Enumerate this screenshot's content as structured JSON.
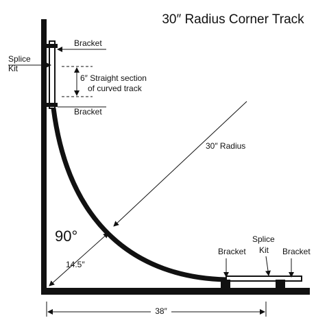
{
  "title": "30″ Radius Corner Track",
  "labels": {
    "bracket_top": "Bracket",
    "splice_top_1": "Splice",
    "splice_top_2": "Kit",
    "straight_1": "6″ Straight section",
    "straight_2": "of curved track",
    "bracket_mid": "Bracket",
    "radius": "30″ Radius",
    "angle": "90°",
    "inner": "14.5″",
    "bracket_bottom_left": "Bracket",
    "splice_bottom_1": "Splice",
    "splice_bottom_2": "Kit",
    "bracket_bottom_right": "Bracket",
    "width": "38″"
  }
}
